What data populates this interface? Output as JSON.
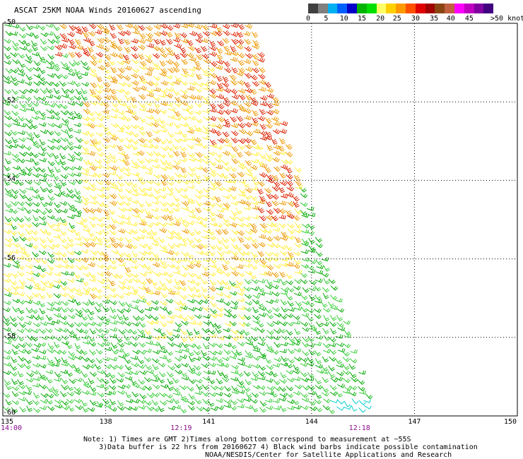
{
  "title": "ASCAT 25KM NOAA Winds 20160627 ascending",
  "legend": {
    "colors": [
      "#404040",
      "#808080",
      "#00b0f0",
      "#0060ff",
      "#0000c8",
      "#00b400",
      "#00e000",
      "#ffff66",
      "#ffd000",
      "#ff9900",
      "#ff5000",
      "#e00000",
      "#a00000",
      "#8b4513",
      "#c06040",
      "#ff00ff",
      "#c000c0",
      "#8000a0",
      "#400080"
    ],
    "labels": [
      {
        "text": "0",
        "pos": 0.0
      },
      {
        "text": "5",
        "pos": 0.097
      },
      {
        "text": "10",
        "pos": 0.194
      },
      {
        "text": "15",
        "pos": 0.29
      },
      {
        "text": "20",
        "pos": 0.39
      },
      {
        "text": "25",
        "pos": 0.48
      },
      {
        "text": "30",
        "pos": 0.58
      },
      {
        "text": "35",
        "pos": 0.68
      },
      {
        "text": "40",
        "pos": 0.77
      },
      {
        "text": "45",
        "pos": 0.87
      },
      {
        "text": ">50 knots",
        "pos": 1.0
      }
    ]
  },
  "map": {
    "lon_range": [
      135,
      150
    ],
    "lat_range": [
      -50,
      -60
    ],
    "lat_ticks": [
      "-50",
      "-52",
      "-54",
      "-56",
      "-58",
      "-60"
    ],
    "lon_ticks": [
      "135",
      "138",
      "141",
      "144",
      "147",
      "150"
    ],
    "times": [
      {
        "text": "14:00",
        "lon": 135
      },
      {
        "text": "12:19",
        "lon": 140.2
      },
      {
        "text": "12:18",
        "lon": 145.4
      }
    ],
    "swath_east_edge": [
      {
        "lat": -50,
        "lon": 142.2
      },
      {
        "lat": -60,
        "lon": 145.8
      }
    ],
    "colors": {
      "blue": "#0000cc",
      "green": "#00aa00",
      "lgreen": "#33cc33",
      "yellow": "#ffee33",
      "orange": "#ee9900",
      "red": "#dd2200",
      "cyan": "#00cccc",
      "grid": "#000000"
    }
  },
  "notes": [
    "Note: 1) Times are GMT 2)Times along bottom correspond to measurement at ~55S",
    "3)Data buffer is 22 hrs from 20160627 4) Black wind barbs indicate possible contamination",
    "NOAA/NESDIS/Center for Satellite Applications and Research"
  ]
}
